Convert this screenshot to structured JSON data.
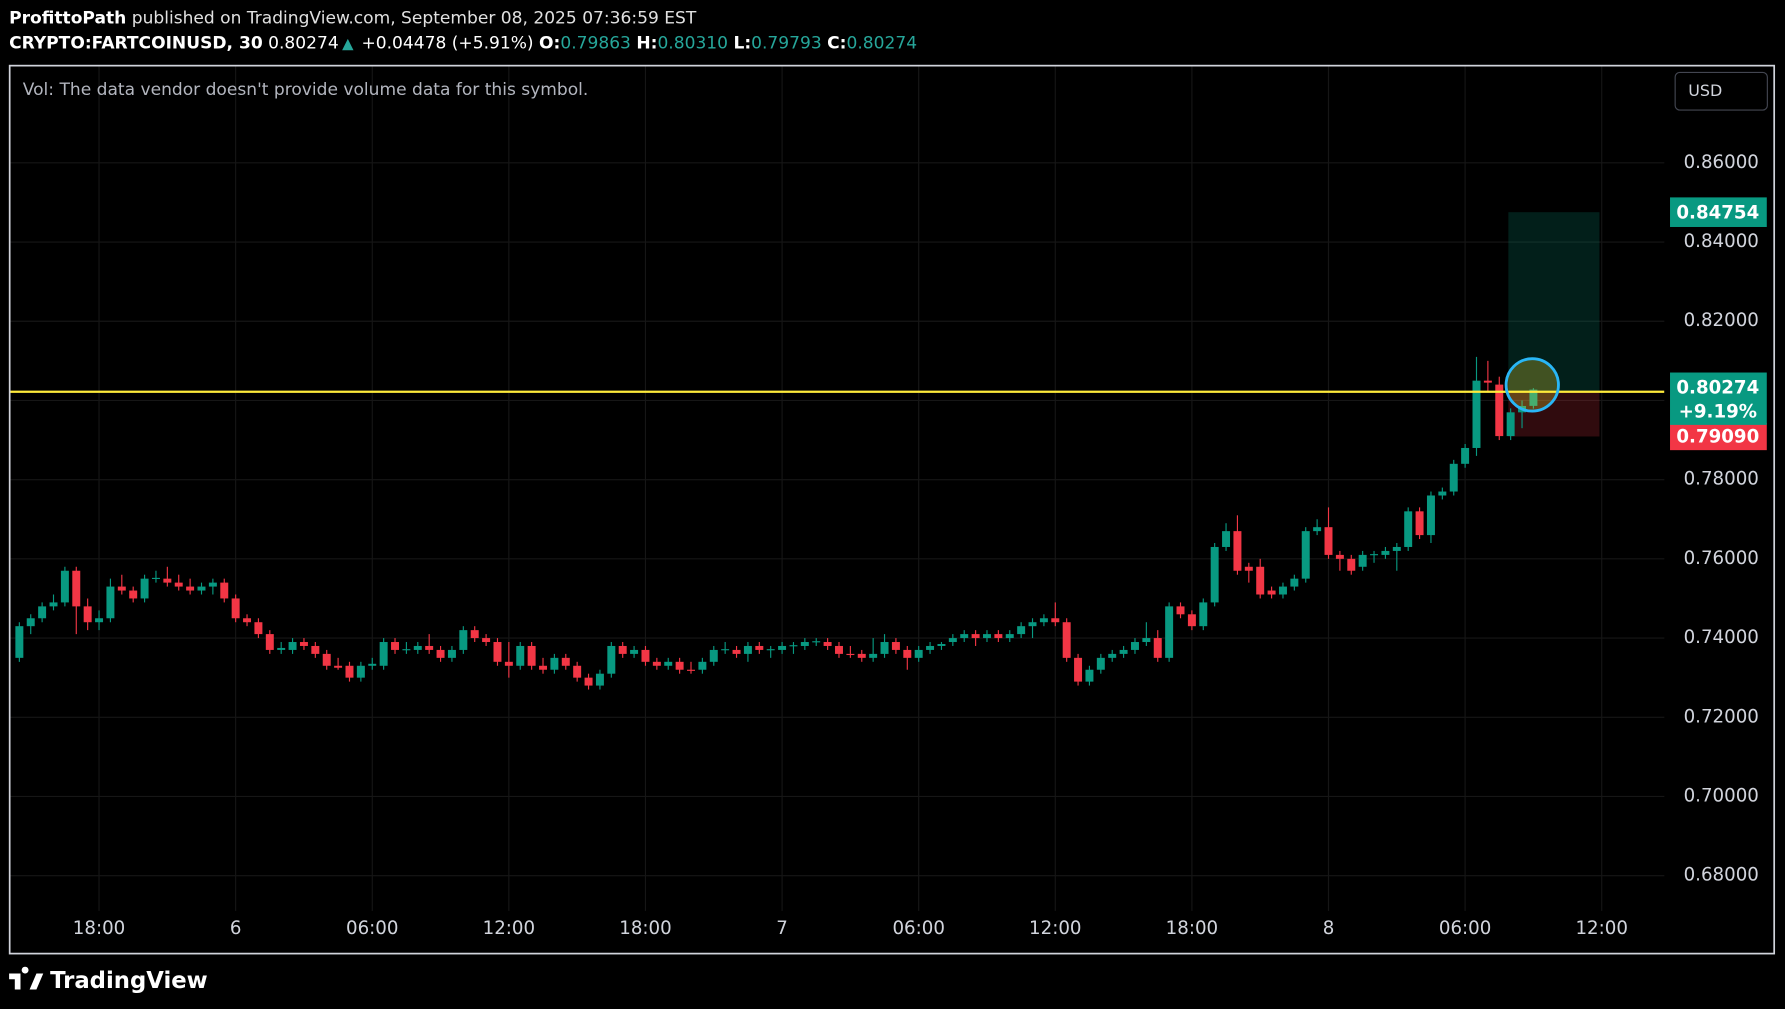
{
  "header": {
    "publisher": "ProfittoPath",
    "published": "published on TradingView.com, September 08, 2025 07:36:59 EST",
    "symbol": "CRYPTO:FARTCOINUSD, 30",
    "last": "0.80274",
    "change": "+0.04478 (+5.91%)",
    "o_label": "O:",
    "o": "0.79863",
    "h_label": "H:",
    "h": "0.80310",
    "l_label": "L:",
    "l": "0.79793",
    "c_label": "C:",
    "c": "0.80274"
  },
  "volume_note": "Vol: The data vendor doesn't provide volume data for this symbol.",
  "currency": "USD",
  "logo": "TradingView",
  "chart_data": {
    "type": "candlestick",
    "up_color": "#089981",
    "down_color": "#f23645",
    "grid": true,
    "xlim": [
      14.1,
      86.75
    ],
    "ylim": [
      0.6711,
      0.8844
    ],
    "xticks": [
      {
        "value": 18,
        "label": "18:00"
      },
      {
        "value": 24,
        "label": "6"
      },
      {
        "value": 30,
        "label": "06:00"
      },
      {
        "value": 36,
        "label": "12:00"
      },
      {
        "value": 42,
        "label": "18:00"
      },
      {
        "value": 48,
        "label": "7"
      },
      {
        "value": 54,
        "label": "06:00"
      },
      {
        "value": 60,
        "label": "12:00"
      },
      {
        "value": 66,
        "label": "18:00"
      },
      {
        "value": 72,
        "label": "8"
      },
      {
        "value": 78,
        "label": "06:00"
      },
      {
        "value": 84,
        "label": "12:00"
      }
    ],
    "yticks": [
      {
        "value": 0.68,
        "label": "0.68000"
      },
      {
        "value": 0.7,
        "label": "0.70000"
      },
      {
        "value": 0.72,
        "label": "0.72000"
      },
      {
        "value": 0.74,
        "label": "0.74000"
      },
      {
        "value": 0.76,
        "label": "0.76000"
      },
      {
        "value": 0.78,
        "label": "0.78000"
      },
      {
        "value": 0.8,
        "label": "0.80000"
      },
      {
        "value": 0.82,
        "label": "0.82000"
      },
      {
        "value": 0.84,
        "label": "0.84000"
      },
      {
        "value": 0.86,
        "label": "0.86000"
      }
    ],
    "hline": 0.8022,
    "hline_color": "#ffeb3b",
    "last_price": 0.80274,
    "last_change": "+9.19%",
    "position": {
      "x": [
        79.9,
        83.9
      ],
      "entry": 0.8022,
      "target": 0.84754,
      "stop": {
        "value": 0.7909,
        "label": "0.79090"
      }
    },
    "x": [
      14.5,
      15,
      15.5,
      16,
      16.5,
      17,
      17.5,
      18,
      18.5,
      19,
      19.5,
      20,
      20.5,
      21,
      21.5,
      22,
      22.5,
      23,
      23.5,
      24,
      24.5,
      25,
      25.5,
      26,
      26.5,
      27,
      27.5,
      28,
      28.5,
      29,
      29.5,
      30,
      30.5,
      31,
      31.5,
      32,
      32.5,
      33,
      33.5,
      34,
      34.5,
      35,
      35.5,
      36,
      36.5,
      37,
      37.5,
      38,
      38.5,
      39,
      39.5,
      40,
      40.5,
      41,
      41.5,
      42,
      42.5,
      43,
      43.5,
      44,
      44.5,
      45,
      45.5,
      46,
      46.5,
      47,
      47.5,
      48,
      48.5,
      49,
      49.5,
      50,
      50.5,
      51,
      51.5,
      52,
      52.5,
      53,
      53.5,
      54,
      54.5,
      55,
      55.5,
      56,
      56.5,
      57,
      57.5,
      58,
      58.5,
      59,
      59.5,
      60,
      60.5,
      61,
      61.5,
      62,
      62.5,
      63,
      63.5,
      64,
      64.5,
      65,
      65.5,
      66,
      66.5,
      67,
      67.5,
      68,
      68.5,
      69,
      69.5,
      70,
      70.5,
      71,
      71.5,
      72,
      72.5,
      73,
      73.5,
      74,
      74.5,
      75,
      75.5,
      76,
      76.5,
      77,
      77.5,
      78,
      78.5,
      79,
      79.5,
      80,
      80.5,
      81
    ],
    "series": [
      {
        "name": "CRYPTO:FARTCOINUSD",
        "ohlc": [
          [
            0.735,
            0.744,
            0.734,
            0.743
          ],
          [
            0.743,
            0.746,
            0.741,
            0.745
          ],
          [
            0.745,
            0.749,
            0.744,
            0.748
          ],
          [
            0.748,
            0.751,
            0.747,
            0.749
          ],
          [
            0.749,
            0.758,
            0.748,
            0.757
          ],
          [
            0.757,
            0.758,
            0.741,
            0.748
          ],
          [
            0.748,
            0.75,
            0.742,
            0.744
          ],
          [
            0.744,
            0.747,
            0.742,
            0.745
          ],
          [
            0.745,
            0.755,
            0.744,
            0.753
          ],
          [
            0.753,
            0.756,
            0.751,
            0.752
          ],
          [
            0.752,
            0.753,
            0.749,
            0.75
          ],
          [
            0.75,
            0.756,
            0.749,
            0.755
          ],
          [
            0.755,
            0.757,
            0.754,
            0.7552
          ],
          [
            0.755,
            0.758,
            0.753,
            0.754
          ],
          [
            0.754,
            0.756,
            0.752,
            0.753
          ],
          [
            0.753,
            0.755,
            0.751,
            0.752
          ],
          [
            0.752,
            0.754,
            0.751,
            0.753
          ],
          [
            0.753,
            0.755,
            0.751,
            0.754
          ],
          [
            0.754,
            0.755,
            0.749,
            0.75
          ],
          [
            0.75,
            0.751,
            0.744,
            0.745
          ],
          [
            0.745,
            0.746,
            0.743,
            0.744
          ],
          [
            0.744,
            0.745,
            0.74,
            0.741
          ],
          [
            0.741,
            0.742,
            0.736,
            0.737
          ],
          [
            0.737,
            0.739,
            0.736,
            0.7375
          ],
          [
            0.737,
            0.74,
            0.736,
            0.739
          ],
          [
            0.739,
            0.74,
            0.737,
            0.738
          ],
          [
            0.738,
            0.739,
            0.735,
            0.736
          ],
          [
            0.736,
            0.737,
            0.732,
            0.733
          ],
          [
            0.733,
            0.735,
            0.732,
            0.7325
          ],
          [
            0.733,
            0.734,
            0.729,
            0.73
          ],
          [
            0.73,
            0.734,
            0.729,
            0.733
          ],
          [
            0.733,
            0.735,
            0.732,
            0.7335
          ],
          [
            0.733,
            0.74,
            0.732,
            0.739
          ],
          [
            0.739,
            0.74,
            0.736,
            0.737
          ],
          [
            0.737,
            0.739,
            0.736,
            0.7372
          ],
          [
            0.737,
            0.739,
            0.736,
            0.738
          ],
          [
            0.738,
            0.741,
            0.736,
            0.737
          ],
          [
            0.737,
            0.738,
            0.734,
            0.735
          ],
          [
            0.735,
            0.738,
            0.734,
            0.737
          ],
          [
            0.737,
            0.743,
            0.736,
            0.742
          ],
          [
            0.742,
            0.743,
            0.739,
            0.74
          ],
          [
            0.74,
            0.741,
            0.738,
            0.739
          ],
          [
            0.739,
            0.74,
            0.733,
            0.734
          ],
          [
            0.734,
            0.739,
            0.73,
            0.733
          ],
          [
            0.733,
            0.739,
            0.732,
            0.738
          ],
          [
            0.738,
            0.739,
            0.732,
            0.733
          ],
          [
            0.733,
            0.735,
            0.731,
            0.732
          ],
          [
            0.732,
            0.736,
            0.731,
            0.735
          ],
          [
            0.735,
            0.736,
            0.732,
            0.733
          ],
          [
            0.733,
            0.734,
            0.729,
            0.73
          ],
          [
            0.73,
            0.731,
            0.727,
            0.728
          ],
          [
            0.728,
            0.732,
            0.727,
            0.731
          ],
          [
            0.731,
            0.739,
            0.73,
            0.738
          ],
          [
            0.738,
            0.739,
            0.735,
            0.736
          ],
          [
            0.736,
            0.738,
            0.735,
            0.737
          ],
          [
            0.737,
            0.738,
            0.733,
            0.734
          ],
          [
            0.734,
            0.735,
            0.732,
            0.733
          ],
          [
            0.733,
            0.735,
            0.732,
            0.734
          ],
          [
            0.734,
            0.735,
            0.731,
            0.732
          ],
          [
            0.732,
            0.734,
            0.731,
            0.7318
          ],
          [
            0.732,
            0.735,
            0.731,
            0.734
          ],
          [
            0.734,
            0.738,
            0.733,
            0.737
          ],
          [
            0.737,
            0.739,
            0.736,
            0.7372
          ],
          [
            0.737,
            0.738,
            0.735,
            0.736
          ],
          [
            0.736,
            0.739,
            0.734,
            0.738
          ],
          [
            0.738,
            0.739,
            0.736,
            0.737
          ],
          [
            0.737,
            0.738,
            0.735,
            0.7372
          ],
          [
            0.737,
            0.739,
            0.736,
            0.738
          ],
          [
            0.738,
            0.739,
            0.736,
            0.7382
          ],
          [
            0.738,
            0.74,
            0.737,
            0.739
          ],
          [
            0.739,
            0.74,
            0.738,
            0.7392
          ],
          [
            0.739,
            0.74,
            0.737,
            0.738
          ],
          [
            0.738,
            0.739,
            0.735,
            0.736
          ],
          [
            0.736,
            0.738,
            0.735,
            0.7358
          ],
          [
            0.736,
            0.737,
            0.734,
            0.735
          ],
          [
            0.735,
            0.74,
            0.734,
            0.736
          ],
          [
            0.736,
            0.741,
            0.735,
            0.739
          ],
          [
            0.739,
            0.74,
            0.736,
            0.737
          ],
          [
            0.737,
            0.738,
            0.732,
            0.735
          ],
          [
            0.735,
            0.738,
            0.734,
            0.737
          ],
          [
            0.737,
            0.739,
            0.736,
            0.738
          ],
          [
            0.738,
            0.739,
            0.737,
            0.7385
          ],
          [
            0.739,
            0.741,
            0.738,
            0.74
          ],
          [
            0.74,
            0.742,
            0.739,
            0.741
          ],
          [
            0.741,
            0.742,
            0.738,
            0.74
          ],
          [
            0.74,
            0.742,
            0.739,
            0.741
          ],
          [
            0.741,
            0.742,
            0.739,
            0.74
          ],
          [
            0.74,
            0.742,
            0.739,
            0.741
          ],
          [
            0.741,
            0.744,
            0.74,
            0.743
          ],
          [
            0.743,
            0.745,
            0.74,
            0.744
          ],
          [
            0.744,
            0.746,
            0.743,
            0.745
          ],
          [
            0.745,
            0.749,
            0.743,
            0.744
          ],
          [
            0.744,
            0.745,
            0.734,
            0.735
          ],
          [
            0.735,
            0.736,
            0.728,
            0.729
          ],
          [
            0.729,
            0.733,
            0.728,
            0.732
          ],
          [
            0.732,
            0.736,
            0.731,
            0.735
          ],
          [
            0.735,
            0.737,
            0.734,
            0.736
          ],
          [
            0.736,
            0.738,
            0.735,
            0.737
          ],
          [
            0.737,
            0.74,
            0.736,
            0.739
          ],
          [
            0.739,
            0.744,
            0.738,
            0.74
          ],
          [
            0.74,
            0.742,
            0.734,
            0.735
          ],
          [
            0.735,
            0.749,
            0.734,
            0.748
          ],
          [
            0.748,
            0.749,
            0.745,
            0.746
          ],
          [
            0.746,
            0.747,
            0.742,
            0.743
          ],
          [
            0.743,
            0.75,
            0.742,
            0.749
          ],
          [
            0.749,
            0.764,
            0.748,
            0.763
          ],
          [
            0.763,
            0.769,
            0.762,
            0.767
          ],
          [
            0.767,
            0.771,
            0.756,
            0.757
          ],
          [
            0.758,
            0.759,
            0.754,
            0.757
          ],
          [
            0.758,
            0.76,
            0.75,
            0.751
          ],
          [
            0.752,
            0.753,
            0.75,
            0.751
          ],
          [
            0.751,
            0.754,
            0.75,
            0.753
          ],
          [
            0.753,
            0.756,
            0.752,
            0.755
          ],
          [
            0.755,
            0.768,
            0.754,
            0.767
          ],
          [
            0.767,
            0.77,
            0.766,
            0.768
          ],
          [
            0.768,
            0.773,
            0.76,
            0.761
          ],
          [
            0.761,
            0.762,
            0.757,
            0.76
          ],
          [
            0.76,
            0.761,
            0.756,
            0.757
          ],
          [
            0.758,
            0.762,
            0.757,
            0.761
          ],
          [
            0.761,
            0.762,
            0.759,
            0.7612
          ],
          [
            0.761,
            0.763,
            0.76,
            0.762
          ],
          [
            0.762,
            0.764,
            0.757,
            0.763
          ],
          [
            0.763,
            0.773,
            0.762,
            0.772
          ],
          [
            0.772,
            0.773,
            0.765,
            0.766
          ],
          [
            0.766,
            0.777,
            0.764,
            0.776
          ],
          [
            0.776,
            0.778,
            0.775,
            0.777
          ],
          [
            0.777,
            0.785,
            0.776,
            0.784
          ],
          [
            0.784,
            0.789,
            0.783,
            0.788
          ],
          [
            0.788,
            0.811,
            0.786,
            0.805
          ],
          [
            0.805,
            0.81,
            0.802,
            0.8045
          ],
          [
            0.804,
            0.806,
            0.79,
            0.791
          ],
          [
            0.791,
            0.798,
            0.79,
            0.797
          ],
          [
            0.797,
            0.8,
            0.793,
            0.7986
          ],
          [
            0.79863,
            0.8031,
            0.79793,
            0.80274
          ]
        ]
      }
    ]
  }
}
